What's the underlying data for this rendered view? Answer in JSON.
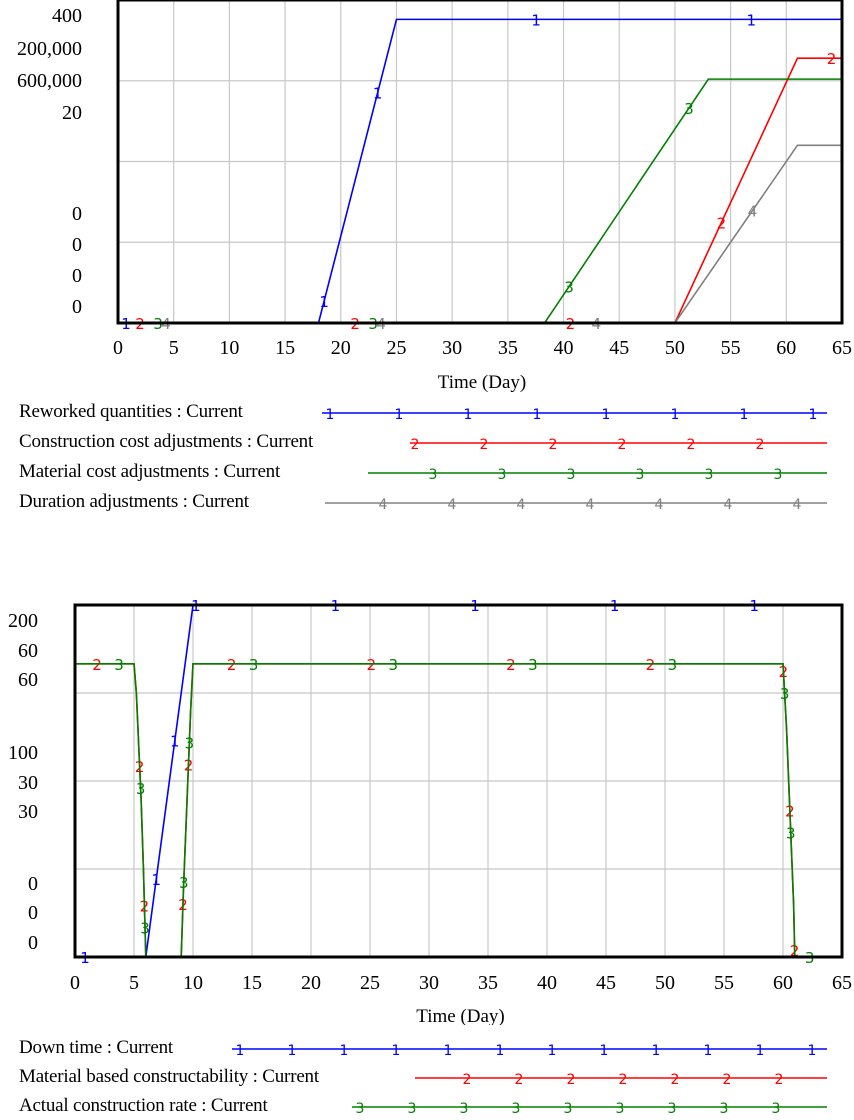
{
  "chart_data": [
    {
      "type": "line",
      "title": "",
      "xlabel": "Time (Day)",
      "ylabel": "",
      "xlim": [
        0,
        65
      ],
      "x_ticks": [
        "0",
        "5",
        "10",
        "15",
        "20",
        "25",
        "30",
        "35",
        "40",
        "45",
        "50",
        "55",
        "60",
        "65"
      ],
      "y_tick_labels": [
        "400",
        "200,000",
        "600,000",
        "20",
        "0",
        "0",
        "0",
        "0"
      ],
      "grid": true,
      "legend_position": "bottom",
      "series": [
        {
          "name": "Reworked quantities : Current",
          "marker": "1",
          "color": "#0000ff",
          "points": [
            [
              0,
              0
            ],
            [
              18,
              0
            ],
            [
              25,
              0.94
            ],
            [
              65,
              0.94
            ]
          ]
        },
        {
          "name": "Construction cost adjustments : Current",
          "marker": "2",
          "color": "#ff0000",
          "points": [
            [
              0,
              0
            ],
            [
              50,
              0
            ],
            [
              61,
              0.82
            ],
            [
              65,
              0.82
            ]
          ]
        },
        {
          "name": "Material cost adjustments : Current",
          "marker": "3",
          "color": "#008000",
          "points": [
            [
              0,
              0
            ],
            [
              38.3,
              0
            ],
            [
              53,
              0.755
            ],
            [
              65,
              0.755
            ]
          ]
        },
        {
          "name": "Duration adjustments : Current",
          "marker": "4",
          "color": "#808080",
          "points": [
            [
              0,
              0
            ],
            [
              50,
              0
            ],
            [
              61,
              0.55
            ],
            [
              65,
              0.55
            ]
          ]
        }
      ]
    },
    {
      "type": "line",
      "title": "",
      "xlabel": "Time (Day)",
      "ylabel": "",
      "xlim": [
        0,
        65
      ],
      "x_ticks": [
        "0",
        "5",
        "10",
        "15",
        "20",
        "25",
        "30",
        "35",
        "40",
        "45",
        "50",
        "55",
        "60",
        "65"
      ],
      "y_tick_labels": [
        "200",
        "60",
        "60",
        "100",
        "30",
        "30",
        "0",
        "0",
        "0"
      ],
      "grid": true,
      "legend_position": "bottom",
      "series": [
        {
          "name": "Down time : Current",
          "marker": "1",
          "color": "#0000ff",
          "points": [
            [
              0,
              0
            ],
            [
              6,
              0
            ],
            [
              10,
              1
            ],
            [
              65,
              1
            ]
          ]
        },
        {
          "name": "Material based constructability : Current",
          "marker": "2",
          "color": "#ff0000",
          "points": [
            [
              0,
              0.833
            ],
            [
              5,
              0.833
            ],
            [
              5.2,
              0.75
            ],
            [
              5.4,
              0.6
            ],
            [
              5.6,
              0.45
            ],
            [
              5.8,
              0.25
            ],
            [
              6,
              0
            ],
            [
              9,
              0
            ],
            [
              9.2,
              0.2
            ],
            [
              9.5,
              0.45
            ],
            [
              9.8,
              0.7
            ],
            [
              10,
              0.833
            ],
            [
              60,
              0.833
            ],
            [
              60.3,
              0.65
            ],
            [
              60.6,
              0.4
            ],
            [
              60.9,
              0.15
            ],
            [
              61,
              0
            ],
            [
              65,
              0
            ]
          ]
        },
        {
          "name": "Actual construction rate : Current",
          "marker": "3",
          "color": "#008000",
          "points": [
            [
              0,
              0.833
            ],
            [
              5,
              0.833
            ],
            [
              5.2,
              0.75
            ],
            [
              5.4,
              0.6
            ],
            [
              5.6,
              0.45
            ],
            [
              5.8,
              0.25
            ],
            [
              6,
              0
            ],
            [
              9,
              0
            ],
            [
              9.2,
              0.2
            ],
            [
              9.5,
              0.45
            ],
            [
              9.8,
              0.7
            ],
            [
              10,
              0.833
            ],
            [
              60,
              0.833
            ],
            [
              60.3,
              0.65
            ],
            [
              60.6,
              0.4
            ],
            [
              60.9,
              0.15
            ],
            [
              61,
              0
            ],
            [
              65,
              0
            ]
          ]
        }
      ]
    }
  ],
  "charts": [
    {
      "x_axis_label": "Time (Day)",
      "legend": [
        {
          "label": "Reworked quantities : Current",
          "marker": "1"
        },
        {
          "label": "Construction cost adjustments : Current",
          "marker": "2"
        },
        {
          "label": "Material cost adjustments : Current",
          "marker": "3"
        },
        {
          "label": "Duration adjustments : Current",
          "marker": "4"
        }
      ]
    },
    {
      "x_axis_label": "Time (Day)",
      "legend": [
        {
          "label": "Down time : Current",
          "marker": "1"
        },
        {
          "label": "Material based constructability : Current",
          "marker": "2"
        },
        {
          "label": "Actual construction rate : Current",
          "marker": "3"
        }
      ]
    }
  ],
  "colors": {
    "series1": "#0000ff",
    "series2": "#ff0000",
    "series3": "#008000",
    "series4": "#808080",
    "grid": "#c8c8c8",
    "frame": "#000000"
  }
}
